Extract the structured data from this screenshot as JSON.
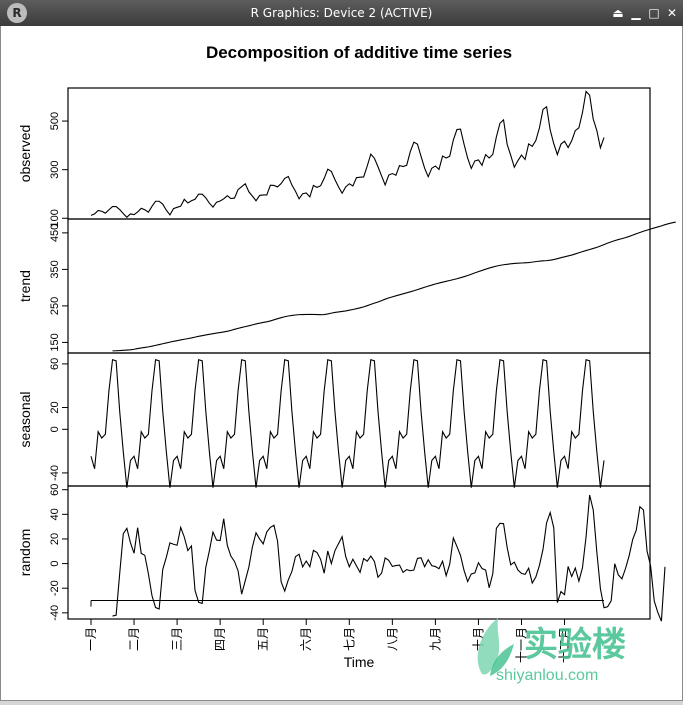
{
  "window": {
    "title": "R Graphics: Device 2 (ACTIVE)",
    "app_icon": "R",
    "controls": [
      {
        "name": "shade-icon",
        "glyph": "⏏"
      },
      {
        "name": "minimize-icon",
        "glyph": "▁"
      },
      {
        "name": "maximize-icon",
        "glyph": "□"
      },
      {
        "name": "close-icon",
        "glyph": "✕"
      }
    ]
  },
  "watermark": {
    "text": "实验楼",
    "url": "shiyanlou.com"
  },
  "chart_data": {
    "type": "line",
    "title": "Decomposition of additive time series",
    "xlabel": "Time",
    "x_tick_labels": [
      "一月",
      "二月",
      "三月",
      "四月",
      "五月",
      "六月",
      "七月",
      "八月",
      "九月",
      "十月",
      "十一月",
      "十二月"
    ],
    "panels": [
      {
        "name": "observed",
        "ylabel": "observed",
        "ylim": [
          97,
          636
        ],
        "yticks": [
          100,
          300,
          500
        ],
        "values": [
          112,
          118,
          132,
          129,
          121,
          135,
          148,
          148,
          136,
          119,
          104,
          118,
          115,
          126,
          141,
          135,
          125,
          149,
          170,
          170,
          158,
          133,
          114,
          140,
          145,
          150,
          178,
          163,
          172,
          178,
          199,
          199,
          184,
          162,
          146,
          166,
          171,
          180,
          193,
          181,
          183,
          218,
          230,
          242,
          209,
          191,
          172,
          194,
          196,
          196,
          236,
          235,
          229,
          243,
          264,
          272,
          237,
          211,
          180,
          201,
          204,
          188,
          235,
          227,
          234,
          264,
          302,
          293,
          259,
          229,
          203,
          229,
          242,
          233,
          267,
          269,
          270,
          315,
          364,
          347,
          312,
          274,
          237,
          278,
          284,
          277,
          317,
          313,
          318,
          374,
          413,
          405,
          355,
          306,
          271,
          306,
          315,
          301,
          356,
          348,
          355,
          422,
          465,
          467,
          404,
          347,
          305,
          336,
          340,
          318,
          362,
          348,
          363,
          435,
          491,
          505,
          404,
          359,
          310,
          337,
          360,
          342,
          406,
          396,
          420,
          472,
          548,
          559,
          463,
          407,
          362,
          405,
          417,
          391,
          419,
          461,
          472,
          535,
          622,
          606,
          508,
          461,
          390,
          432
        ]
      },
      {
        "name": "trend",
        "ylabel": "trend",
        "ylim": [
          121,
          488
        ],
        "yticks": [
          150,
          250,
          350,
          450
        ],
        "values": [
          null,
          null,
          null,
          null,
          null,
          null,
          126.8,
          127.2,
          127.6,
          128.3,
          129.0,
          129.8,
          131.3,
          133.1,
          134.9,
          136.3,
          137.8,
          139.6,
          141.9,
          144.2,
          146.3,
          148.5,
          150.8,
          152.9,
          154.8,
          156.8,
          158.6,
          160.4,
          162.2,
          164.4,
          166.6,
          168.5,
          170.5,
          172.2,
          174.0,
          175.5,
          177.0,
          178.8,
          180.5,
          183.0,
          185.8,
          188.5,
          191.0,
          193.2,
          195.4,
          198.0,
          200.6,
          202.6,
          204.7,
          206.5,
          208.8,
          211.9,
          214.9,
          217.7,
          220.3,
          222.4,
          223.9,
          225.1,
          226.1,
          226.3,
          226.6,
          226.7,
          226.5,
          226.2,
          226.0,
          226.4,
          228.0,
          230.2,
          232.0,
          233.4,
          234.8,
          236.3,
          238.2,
          240.1,
          242.3,
          244.7,
          247.4,
          250.6,
          254.1,
          257.5,
          260.7,
          264.4,
          268.4,
          271.9,
          274.8,
          277.6,
          280.4,
          283.1,
          285.8,
          288.6,
          291.4,
          294.5,
          297.8,
          301.1,
          304.2,
          307.1,
          309.9,
          312.6,
          315.0,
          317.3,
          319.6,
          321.9,
          324.4,
          327.2,
          330.0,
          333.3,
          336.8,
          340.5,
          343.9,
          347.1,
          350.5,
          353.6,
          356.3,
          358.9,
          361.0,
          362.7,
          364.0,
          365.3,
          366.2,
          367.0,
          367.5,
          368.1,
          368.8,
          369.9,
          371.3,
          372.6,
          373.4,
          374.0,
          375.1,
          377.0,
          379.3,
          382.0,
          384.5,
          386.8,
          389.3,
          392.3,
          395.5,
          398.6,
          401.6,
          404.5,
          407.4,
          410.3,
          414.0,
          417.9,
          421.9,
          425.4,
          428.7,
          431.6,
          434.2,
          437.0,
          440.2,
          443.8,
          447.6,
          451.1,
          454.4,
          457.6,
          460.6,
          463.5,
          466.3,
          469.2,
          472.4,
          475.2,
          477.6,
          479.7,
          null,
          null,
          null,
          null,
          null,
          null
        ]
      },
      {
        "name": "seasonal",
        "ylabel": "seasonal",
        "ylim": [
          -52,
          70
        ],
        "yticks": [
          -40,
          0,
          20,
          60
        ],
        "values": [
          -24.7,
          -36.2,
          -2.2,
          -8.0,
          -4.5,
          35.4,
          63.8,
          62.8,
          16.5,
          -20.6,
          -53.6,
          -28.6
        ]
      },
      {
        "name": "random",
        "ylabel": "random",
        "ylim": [
          -45,
          63
        ],
        "yticks": [
          -40,
          -20,
          0,
          20,
          40,
          60
        ],
        "baseline": -30,
        "values": [
          null,
          null,
          null,
          null,
          null,
          null,
          -42.6,
          -41.9,
          -8.1,
          24.3,
          28.6,
          16.9,
          8.4,
          29.1,
          8.3,
          6.7,
          -8.3,
          -26.0,
          -35.7,
          -36.9,
          -4.8,
          5.2,
          16.8,
          15.7,
          14.9,
          29.4,
          21.6,
          10.6,
          14.3,
          -21.8,
          -31.4,
          -32.3,
          -3.0,
          10.4,
          25.6,
          19.1,
          18.7,
          36.4,
          14.7,
          6.0,
          1.7,
          -5.9,
          -24.8,
          -13.9,
          -2.9,
          13.6,
          25.0,
          20.0,
          16.0,
          25.7,
          29.4,
          31.1,
          18.2,
          -14.8,
          -22.3,
          -13.2,
          -6.4,
          5.6,
          7.6,
          -2.7,
          2.1,
          -2.5,
          10.7,
          9.0,
          3.5,
          -7.8,
          10.2,
          0.0,
          10.5,
          16.2,
          21.8,
          5.7,
          -2.6,
          3.5,
          -1.9,
          -7.2,
          4.1,
          1.9,
          6.1,
          1.7,
          -11.1,
          -7.8,
          4.6,
          2.6,
          -2.3,
          -1.6,
          -1.2,
          -7.2,
          -4.9,
          -5.8,
          -5.2,
          4.2,
          4.7,
          -2.5,
          3.1,
          -1.7,
          -2.4,
          -4.2,
          1.9,
          -9.8,
          -0.4,
          20.8,
          13.9,
          6.6,
          -5.7,
          -14.6,
          -8.4,
          -7.6,
          0.7,
          -4.0,
          -5.2,
          -19.6,
          -8.2,
          28.6,
          32.7,
          32.4,
          13.2,
          -1.1,
          1.2,
          -5.2,
          -8.0,
          -8.8,
          -3.8,
          -15.8,
          -10.9,
          -1.5,
          11.6,
          33.1,
          41.4,
          29.0,
          -31.7,
          -22.7,
          -25.2,
          -2.3,
          -10.5,
          -3.6,
          -14.3,
          -3.3,
          21.7,
          55.7,
          43.5,
          9.4,
          -20.4,
          -35.8,
          -35.1,
          -30.3,
          -0.1,
          -9.2,
          -12.4,
          -4.0,
          6.3,
          19.6,
          27.2,
          46.2,
          43.5,
          10.2,
          -2.0,
          -30.3,
          -39.7,
          -46.8,
          -2.6,
          null,
          null,
          null,
          null,
          null,
          null
        ]
      }
    ]
  }
}
